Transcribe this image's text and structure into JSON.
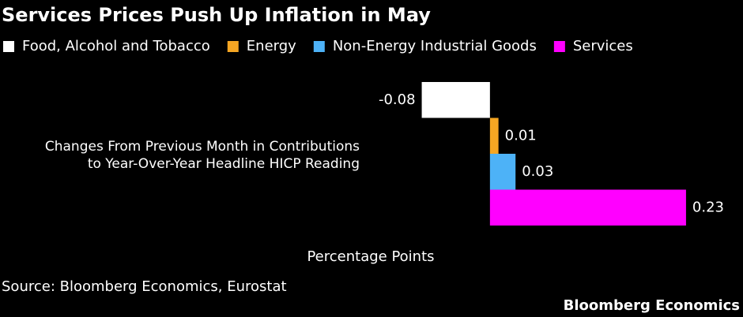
{
  "chart_data": {
    "type": "bar",
    "orientation": "horizontal",
    "title": "Services Prices Push Up Inflation in May",
    "categories": [
      "Changes From Previous Month in Contributions\nto Year-Over-Year Headline HICP Reading"
    ],
    "series": [
      {
        "name": "Food, Alcohol and Tobacco",
        "color": "#ffffff",
        "values": [
          -0.08
        ]
      },
      {
        "name": "Energy",
        "color": "#f5a623",
        "values": [
          0.01
        ]
      },
      {
        "name": "Non-Energy Industrial Goods",
        "color": "#4db2f7",
        "values": [
          0.03
        ]
      },
      {
        "name": "Services",
        "color": "#ff00ff",
        "values": [
          0.23
        ]
      }
    ],
    "xlabel": "Percentage Points",
    "xlim": [
      -0.1,
      0.25
    ],
    "legend": "top",
    "source": "Source: Bloomberg Economics, Eurostat",
    "brand": "Bloomberg Economics"
  }
}
